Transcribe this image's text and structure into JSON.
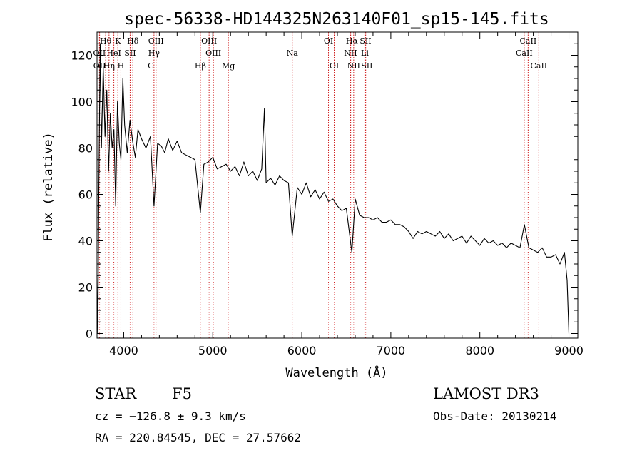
{
  "chart_data": {
    "type": "line",
    "title": "spec-56338-HD144325N263140F01_sp15-145.fits",
    "xlabel": "Wavelength (Å)",
    "ylabel": "Flux (relative)",
    "xlim": [
      3700,
      9100
    ],
    "ylim": [
      -2,
      130
    ],
    "xticks": [
      4000,
      5000,
      6000,
      7000,
      8000,
      9000
    ],
    "yticks": [
      0,
      20,
      40,
      60,
      80,
      100,
      120
    ],
    "series": [
      {
        "name": "flux",
        "x": [
          3700,
          3710,
          3720,
          3735,
          3750,
          3770,
          3790,
          3810,
          3830,
          3850,
          3870,
          3890,
          3910,
          3930,
          3950,
          3968,
          3990,
          4010,
          4040,
          4070,
          4100,
          4130,
          4160,
          4200,
          4250,
          4300,
          4340,
          4380,
          4420,
          4460,
          4500,
          4550,
          4600,
          4650,
          4700,
          4750,
          4800,
          4861,
          4900,
          4950,
          5000,
          5050,
          5100,
          5150,
          5200,
          5250,
          5300,
          5350,
          5400,
          5450,
          5500,
          5550,
          5580,
          5600,
          5650,
          5700,
          5750,
          5800,
          5850,
          5893,
          5950,
          6000,
          6050,
          6100,
          6150,
          6200,
          6250,
          6300,
          6350,
          6400,
          6450,
          6500,
          6563,
          6600,
          6650,
          6700,
          6750,
          6800,
          6850,
          6900,
          6950,
          7000,
          7050,
          7100,
          7150,
          7200,
          7250,
          7300,
          7350,
          7400,
          7450,
          7500,
          7550,
          7600,
          7650,
          7700,
          7750,
          7800,
          7850,
          7900,
          7950,
          8000,
          8050,
          8100,
          8150,
          8200,
          8250,
          8300,
          8350,
          8400,
          8450,
          8500,
          8550,
          8600,
          8650,
          8700,
          8750,
          8800,
          8850,
          8900,
          8950,
          8980,
          9000
        ],
        "values": [
          25,
          0,
          60,
          125,
          80,
          115,
          85,
          105,
          70,
          95,
          80,
          88,
          55,
          100,
          82,
          75,
          110,
          90,
          78,
          92,
          83,
          76,
          88,
          84,
          80,
          85,
          55,
          82,
          81,
          78,
          84,
          79,
          83,
          78,
          77,
          76,
          75,
          52,
          73,
          74,
          76,
          71,
          72,
          73,
          70,
          72,
          68,
          74,
          68,
          70,
          66,
          71,
          97,
          65,
          67,
          64,
          68,
          66,
          65,
          42,
          63,
          60,
          65,
          59,
          62,
          58,
          61,
          57,
          58,
          55,
          53,
          54,
          35,
          58,
          51,
          50,
          50,
          49,
          50,
          48,
          48,
          49,
          47,
          47,
          46,
          44,
          41,
          44,
          43,
          44,
          43,
          42,
          44,
          41,
          43,
          40,
          41,
          42,
          39,
          42,
          40,
          38,
          41,
          39,
          40,
          38,
          39,
          37,
          39,
          38,
          37,
          47,
          37,
          36,
          35,
          37,
          33,
          33,
          34,
          30,
          35,
          23,
          0
        ]
      }
    ],
    "lines": [
      {
        "name": "Hθ",
        "x": 3797,
        "row": 0
      },
      {
        "name": "K",
        "x": 3934,
        "row": 0
      },
      {
        "name": "Hδ",
        "x": 4102,
        "row": 0
      },
      {
        "name": "OIII",
        "x": 4363,
        "row": 0
      },
      {
        "name": "OIII",
        "x": 4959,
        "row": 0
      },
      {
        "name": "OI",
        "x": 6300,
        "row": 0
      },
      {
        "name": "Hα",
        "x": 6563,
        "row": 0
      },
      {
        "name": "SII",
        "x": 6716,
        "row": 0
      },
      {
        "name": "CaII",
        "x": 8542,
        "row": 0
      },
      {
        "name": "OII",
        "x": 3727,
        "row": 1
      },
      {
        "name": "HeI",
        "x": 3889,
        "row": 1
      },
      {
        "name": "SII",
        "x": 4072,
        "row": 1
      },
      {
        "name": "Hγ",
        "x": 4340,
        "row": 1
      },
      {
        "name": "OIII",
        "x": 5007,
        "row": 1
      },
      {
        "name": "Na",
        "x": 5893,
        "row": 1
      },
      {
        "name": "NII",
        "x": 6548,
        "row": 1
      },
      {
        "name": "Li",
        "x": 6708,
        "row": 1
      },
      {
        "name": "CaII",
        "x": 8498,
        "row": 1
      },
      {
        "name": "OII",
        "x": 3729,
        "row": 2
      },
      {
        "name": "Hη",
        "x": 3835,
        "row": 2
      },
      {
        "name": "H",
        "x": 3968,
        "row": 2
      },
      {
        "name": "G",
        "x": 4305,
        "row": 2
      },
      {
        "name": "Hβ",
        "x": 4861,
        "row": 2
      },
      {
        "name": "Mg",
        "x": 5175,
        "row": 2
      },
      {
        "name": "OI",
        "x": 6364,
        "row": 2
      },
      {
        "name": "NII",
        "x": 6583,
        "row": 2
      },
      {
        "name": "SII",
        "x": 6731,
        "row": 2
      },
      {
        "name": "CaII",
        "x": 8662,
        "row": 2
      }
    ],
    "line_color": "#d02020"
  },
  "info": {
    "class": "STAR",
    "subclass": "F5",
    "survey": "LAMOST DR3",
    "redshift": "cz = −126.8 ± 9.3 km/s",
    "obs_date": "Obs-Date: 20130214",
    "coords": "RA = 220.84545, DEC =  27.57662"
  }
}
